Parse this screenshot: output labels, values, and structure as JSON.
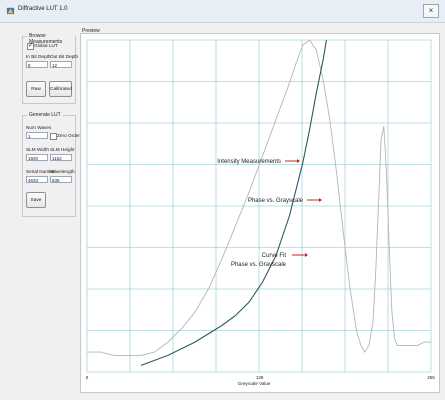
{
  "window": {
    "title": "Diffractive LUT 1.0",
    "close_label": "×"
  },
  "browse": {
    "group_title": "Browse Measurements",
    "global_lut_label": "Global LUT",
    "global_lut_checked": true,
    "in_bit_depth_label": "In Bit Depth",
    "in_bit_depth_value": "8",
    "out_bit_depth_label": "Out Bit Depth",
    "out_bit_depth_value": "12",
    "raw_button": "Raw",
    "calibrated_button": "Calibrated"
  },
  "generate": {
    "group_title": "Generate LUT",
    "num_waves_label": "Num Waves",
    "num_waves_value": "1",
    "zero_order_label": "Zero Order",
    "zero_order_checked": false,
    "slm_width_label": "SLM Width",
    "slm_width_value": "1920",
    "slm_height_label": "SLM Height",
    "slm_height_value": "1152",
    "serial_number_label": "Serial Number",
    "serial_number_value": "4633",
    "wavelength_label": "Wavelength",
    "wavelength_value": "635",
    "save_button": "Save"
  },
  "preview": {
    "group_title": "Preview",
    "xlabel": "Greyscale Value",
    "annotations": {
      "intensity": "Intensity Measurements",
      "phase": "Phase vs. Grayscale",
      "curve_fit_line1": "Curve Fit",
      "curve_fit_line2": "Phase vs. Grayscale"
    },
    "colors": {
      "grid": "#a8d4dc",
      "phase": "#2e5a5a",
      "intensity": "#b5b5b5",
      "arrow": "#d0201a"
    }
  },
  "chart_data": {
    "type": "line",
    "title": "",
    "xlabel": "Greyscale Value",
    "ylabel": "",
    "xlim": [
      0,
      255
    ],
    "ylim": [
      0,
      1
    ],
    "x_ticks": [
      "0",
      "128",
      "255"
    ],
    "grid": true,
    "series": [
      {
        "name": "Intensity Measurements",
        "x": [
          0,
          10,
          20,
          30,
          40,
          50,
          60,
          70,
          80,
          90,
          100,
          110,
          120,
          130,
          140,
          150,
          155,
          160,
          165,
          170,
          175,
          180,
          185,
          190,
          195,
          200,
          203,
          206,
          209,
          212,
          214,
          216,
          218,
          220,
          222,
          224,
          226,
          228,
          230,
          232,
          234,
          236,
          238,
          240,
          245,
          250,
          255
        ],
        "y": [
          0.06,
          0.06,
          0.05,
          0.05,
          0.05,
          0.06,
          0.09,
          0.13,
          0.18,
          0.25,
          0.34,
          0.44,
          0.54,
          0.65,
          0.76,
          0.87,
          0.93,
          0.985,
          1.0,
          0.97,
          0.88,
          0.76,
          0.6,
          0.42,
          0.25,
          0.12,
          0.08,
          0.06,
          0.08,
          0.15,
          0.3,
          0.5,
          0.7,
          0.74,
          0.6,
          0.38,
          0.18,
          0.1,
          0.08,
          0.08,
          0.08,
          0.08,
          0.08,
          0.08,
          0.08,
          0.09,
          0.09
        ]
      },
      {
        "name": "Phase vs. Grayscale",
        "x": [
          40,
          60,
          80,
          100,
          110,
          120,
          130,
          140,
          150,
          155,
          160,
          165,
          170,
          175,
          180
        ],
        "y": [
          0.02,
          0.05,
          0.09,
          0.14,
          0.17,
          0.21,
          0.27,
          0.35,
          0.47,
          0.55,
          0.63,
          0.73,
          0.84,
          0.94,
          1.06
        ]
      }
    ]
  }
}
